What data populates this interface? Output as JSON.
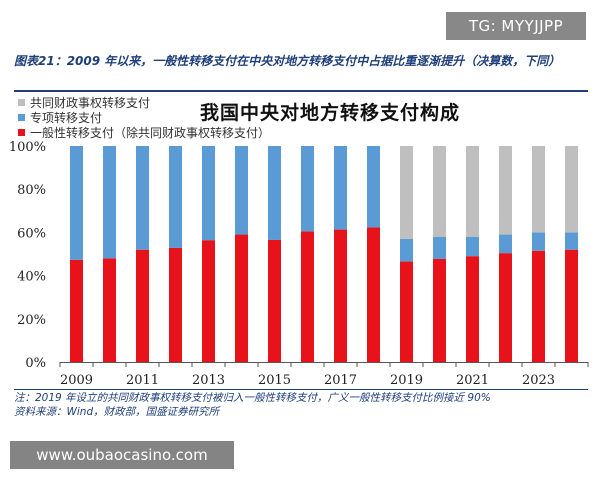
{
  "watermark_top": "TG: MYYJJPP",
  "figure_title": "图表21：2009 年以来，一般性转移支付在中央对地方转移支付中占据比重逐渐提升（决算数，下同）",
  "notes": {
    "line1": "注：2019 年设立的共同财政事权转移支付被归入一般性转移支付，广义一般性转移支付比例接近 90%",
    "line2": "资料来源：Wind，财政部，国盛证券研究所"
  },
  "watermark_bottom": "www.oubaocasino.com",
  "colors": {
    "general": "#e8121b",
    "special": "#5b9bd5",
    "shared": "#bfbfbf",
    "title_blue": "#1f3f7a"
  },
  "chart_data": {
    "type": "bar",
    "stacked": true,
    "title": "我国中央对地方转移支付构成",
    "categories": [
      "2009",
      "2010",
      "2011",
      "2012",
      "2013",
      "2014",
      "2015",
      "2016",
      "2017",
      "2018",
      "2019",
      "2020",
      "2021",
      "2022",
      "2023",
      "2024"
    ],
    "tick_labels": [
      "2009",
      "2011",
      "2013",
      "2015",
      "2017",
      "2019",
      "2021",
      "2023"
    ],
    "ylim": [
      0,
      100
    ],
    "yticks": [
      "0%",
      "20%",
      "40%",
      "60%",
      "80%",
      "100%"
    ],
    "legend_position": "top-left",
    "grid": false,
    "series": [
      {
        "name": "一般性转移支付（除共同财政事权转移支付）",
        "color_key": "general",
        "values": [
          47.3,
          48.0,
          52.0,
          52.8,
          56.4,
          59.0,
          56.5,
          60.5,
          61.3,
          62.3,
          46.5,
          47.7,
          49.0,
          50.4,
          51.5,
          52.0
        ]
      },
      {
        "name": "专项转移支付",
        "color_key": "special",
        "values": [
          52.7,
          52.0,
          48.0,
          47.2,
          43.6,
          41.0,
          43.5,
          39.5,
          38.7,
          37.7,
          10.5,
          10.3,
          9.0,
          8.6,
          8.5,
          8.0
        ]
      },
      {
        "name": "共同财政事权转移支付",
        "color_key": "shared",
        "values": [
          0,
          0,
          0,
          0,
          0,
          0,
          0,
          0,
          0,
          0,
          43.0,
          42.0,
          42.0,
          41.0,
          40.0,
          40.0
        ]
      }
    ]
  }
}
